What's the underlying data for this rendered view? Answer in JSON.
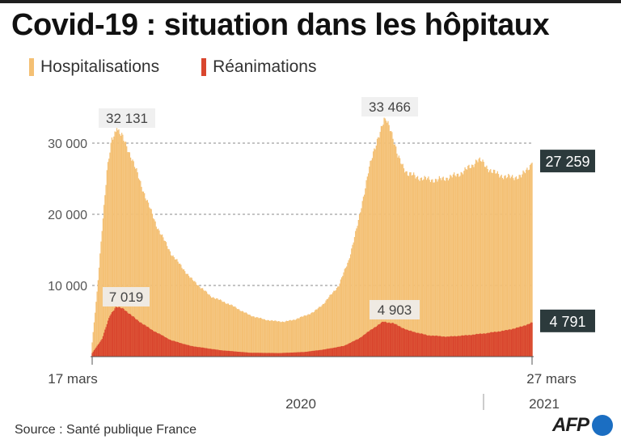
{
  "title": "Covid-19 : situation dans les hôpitaux",
  "source": "Source : Santé publique France",
  "logo_text": "AFP",
  "colors": {
    "hosp": "#f4c074",
    "rea": "#d9462e",
    "dark_label": "#2c3a3c",
    "logo_blue": "#1b6ec2"
  },
  "legend": [
    {
      "label": "Hospitalisations",
      "color": "#f4c074"
    },
    {
      "label": "Réanimations",
      "color": "#d9462e"
    }
  ],
  "chart_data": {
    "type": "bar",
    "x_start_label": "17 mars",
    "x_end_label": "27 mars",
    "year_labels": [
      "2020",
      "2021"
    ],
    "ylim": [
      0,
      30000
    ],
    "yticks": [
      10000,
      20000,
      30000
    ],
    "ytick_labels": [
      "10 000",
      "20 000",
      "30 000"
    ],
    "grid": "dashed horizontal",
    "series": [
      {
        "name": "Hospitalisations",
        "keypoints": [
          [
            0,
            2000
          ],
          [
            5,
            9000
          ],
          [
            10,
            18000
          ],
          [
            15,
            26000
          ],
          [
            20,
            30500
          ],
          [
            25,
            32131
          ],
          [
            30,
            31000
          ],
          [
            40,
            28000
          ],
          [
            50,
            24000
          ],
          [
            65,
            18500
          ],
          [
            80,
            14500
          ],
          [
            100,
            11000
          ],
          [
            120,
            8500
          ],
          [
            140,
            7300
          ],
          [
            160,
            5800
          ],
          [
            175,
            5200
          ],
          [
            185,
            5000
          ],
          [
            195,
            4900
          ],
          [
            205,
            5200
          ],
          [
            215,
            5700
          ],
          [
            225,
            6300
          ],
          [
            235,
            7500
          ],
          [
            250,
            10000
          ],
          [
            260,
            13500
          ],
          [
            270,
            19000
          ],
          [
            280,
            26000
          ],
          [
            290,
            31000
          ],
          [
            297,
            33466
          ],
          [
            303,
            32000
          ],
          [
            310,
            28000
          ],
          [
            320,
            25700
          ],
          [
            335,
            25000
          ],
          [
            350,
            24800
          ],
          [
            370,
            25500
          ],
          [
            385,
            26800
          ],
          [
            390,
            27700
          ],
          [
            395,
            27400
          ],
          [
            405,
            26000
          ],
          [
            420,
            25200
          ],
          [
            435,
            25300
          ],
          [
            446,
            27259
          ]
        ],
        "annotations": [
          {
            "index": 25,
            "label": "32 131"
          },
          {
            "index": 297,
            "label": "33 466"
          }
        ],
        "last_value": 27259,
        "last_label": "27 259"
      },
      {
        "name": "Réanimations",
        "keypoints": [
          [
            0,
            500
          ],
          [
            10,
            2500
          ],
          [
            18,
            5800
          ],
          [
            24,
            7019
          ],
          [
            32,
            6700
          ],
          [
            45,
            5200
          ],
          [
            60,
            3800
          ],
          [
            80,
            2300
          ],
          [
            100,
            1500
          ],
          [
            130,
            900
          ],
          [
            160,
            550
          ],
          [
            190,
            500
          ],
          [
            215,
            650
          ],
          [
            235,
            1000
          ],
          [
            255,
            1500
          ],
          [
            270,
            2500
          ],
          [
            285,
            4000
          ],
          [
            295,
            4903
          ],
          [
            305,
            4700
          ],
          [
            320,
            3700
          ],
          [
            340,
            3000
          ],
          [
            360,
            2800
          ],
          [
            380,
            3000
          ],
          [
            400,
            3300
          ],
          [
            420,
            3700
          ],
          [
            435,
            4200
          ],
          [
            446,
            4791
          ]
        ],
        "annotations": [
          {
            "index": 24,
            "label": "7 019"
          },
          {
            "index": 295,
            "label": "4 903"
          }
        ],
        "last_value": 4791,
        "last_label": "4 791"
      }
    ]
  }
}
